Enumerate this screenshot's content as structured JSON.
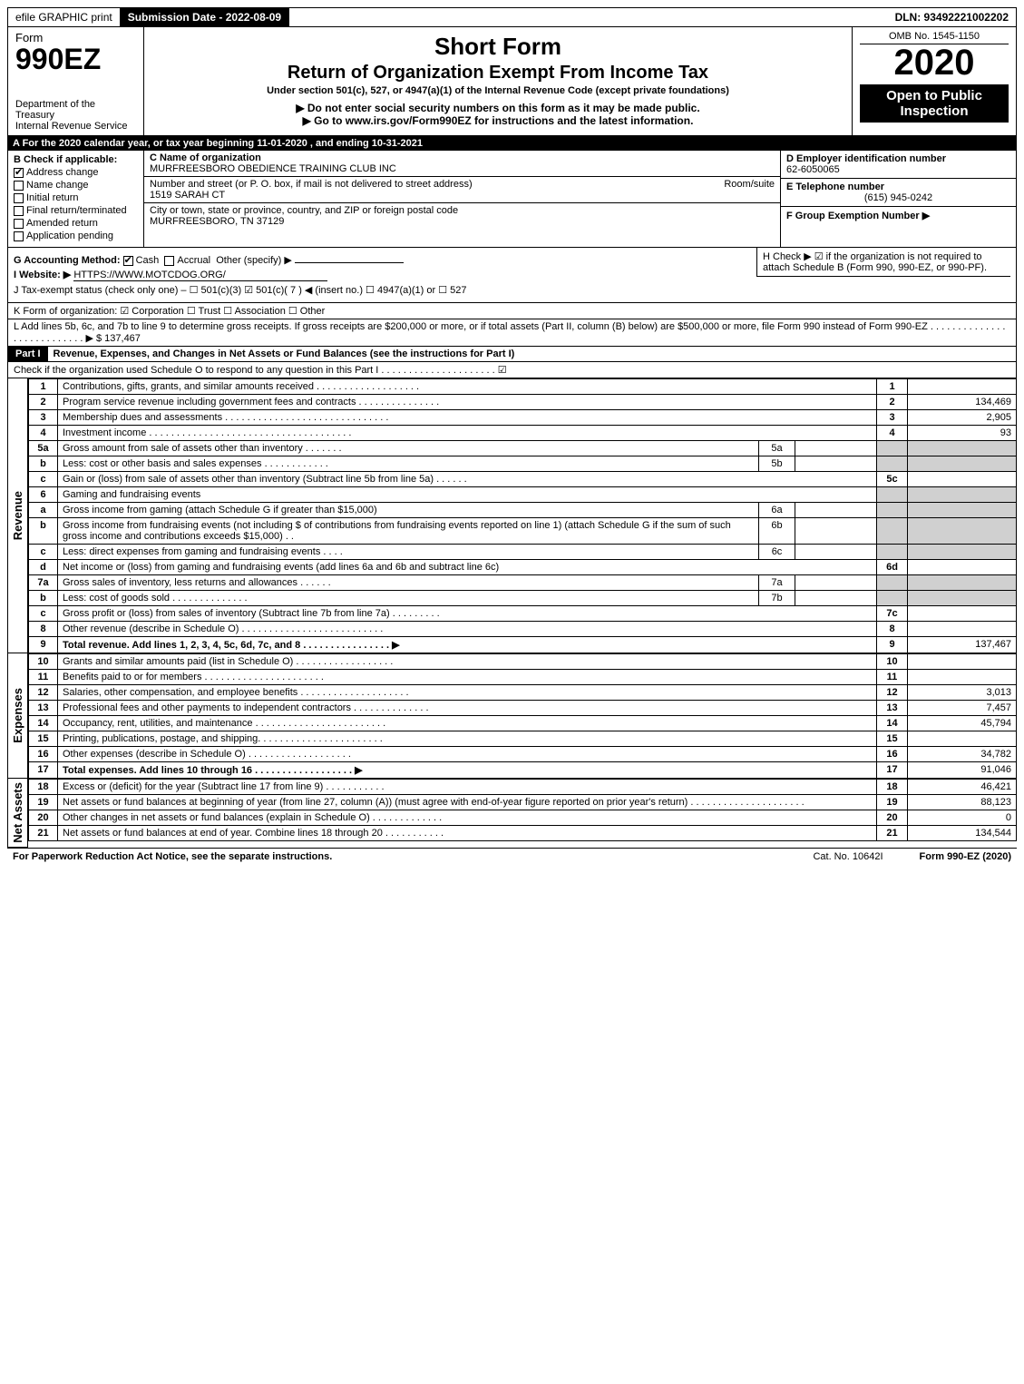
{
  "topbar": {
    "efile": "efile GRAPHIC print",
    "submission": "Submission Date - 2022-08-09",
    "dln": "DLN: 93492221002202"
  },
  "header": {
    "form_label": "Form",
    "form_number": "990EZ",
    "dept": "Department of the Treasury",
    "irs": "Internal Revenue Service",
    "title1": "Short Form",
    "title2": "Return of Organization Exempt From Income Tax",
    "subtitle": "Under section 501(c), 527, or 4947(a)(1) of the Internal Revenue Code (except private foundations)",
    "arrow1": "▶ Do not enter social security numbers on this form as it may be made public.",
    "arrow2": "▶ Go to www.irs.gov/Form990EZ for instructions and the latest information.",
    "omb": "OMB No. 1545-1150",
    "year": "2020",
    "open": "Open to Public Inspection"
  },
  "lineA": "A For the 2020 calendar year, or tax year beginning 11-01-2020 , and ending 10-31-2021",
  "boxB": {
    "label": "B Check if applicable:",
    "items": [
      {
        "checked": true,
        "label": "Address change"
      },
      {
        "checked": false,
        "label": "Name change"
      },
      {
        "checked": false,
        "label": "Initial return"
      },
      {
        "checked": false,
        "label": "Final return/terminated"
      },
      {
        "checked": false,
        "label": "Amended return"
      },
      {
        "checked": false,
        "label": "Application pending"
      }
    ]
  },
  "boxC": {
    "name_label": "C Name of organization",
    "name": "MURFREESBORO OBEDIENCE TRAINING CLUB INC",
    "addr_label": "Number and street (or P. O. box, if mail is not delivered to street address)",
    "room_label": "Room/suite",
    "addr": "1519 SARAH CT",
    "city_label": "City or town, state or province, country, and ZIP or foreign postal code",
    "city": "MURFREESBORO, TN  37129"
  },
  "boxD": {
    "label": "D Employer identification number",
    "value": "62-6050065"
  },
  "boxE": {
    "label": "E Telephone number",
    "value": "(615) 945-0242"
  },
  "boxF": {
    "label": "F Group Exemption Number ▶",
    "value": ""
  },
  "lineG": {
    "label": "G Accounting Method:",
    "cash": "Cash",
    "accrual": "Accrual",
    "other": "Other (specify) ▶"
  },
  "lineH": "H  Check ▶ ☑ if the organization is not required to attach Schedule B (Form 990, 990-EZ, or 990-PF).",
  "lineI": {
    "label": "I Website: ▶",
    "value": "HTTPS://WWW.MOTCDOG.ORG/"
  },
  "lineJ": "J Tax-exempt status (check only one) – ☐ 501(c)(3)  ☑ 501(c)( 7 ) ◀ (insert no.)  ☐ 4947(a)(1) or  ☐ 527",
  "lineK": "K Form of organization:  ☑ Corporation  ☐ Trust  ☐ Association  ☐ Other",
  "lineL": {
    "text": "L Add lines 5b, 6c, and 7b to line 9 to determine gross receipts. If gross receipts are $200,000 or more, or if total assets (Part II, column (B) below) are $500,000 or more, file Form 990 instead of Form 990-EZ  .  .  .  .  .  .  .  .  .  .  .  .  .  .  .  .  .  .  .  .  .  .  .  .  .  .  .  ▶ $",
    "value": "137,467"
  },
  "part1": {
    "label": "Part I",
    "title": "Revenue, Expenses, and Changes in Net Assets or Fund Balances (see the instructions for Part I)",
    "check": "Check if the organization used Schedule O to respond to any question in this Part I  .  .  .  .  .  .  .  .  .  .  .  .  .  .  .  .  .  .  .  .  .  ☑"
  },
  "sections": {
    "revenue": "Revenue",
    "expenses": "Expenses",
    "netassets": "Net Assets"
  },
  "rows": [
    {
      "n": "1",
      "desc": "Contributions, gifts, grants, and similar amounts received  .  .  .  .  .  .  .  .  .  .  .  .  .  .  .  .  .  .  .",
      "ln": "1",
      "val": ""
    },
    {
      "n": "2",
      "desc": "Program service revenue including government fees and contracts  .  .  .  .  .  .  .  .  .  .  .  .  .  .  .",
      "ln": "2",
      "val": "134,469"
    },
    {
      "n": "3",
      "desc": "Membership dues and assessments  .  .  .  .  .  .  .  .  .  .  .  .  .  .  .  .  .  .  .  .  .  .  .  .  .  .  .  .  .  .",
      "ln": "3",
      "val": "2,905"
    },
    {
      "n": "4",
      "desc": "Investment income  .  .  .  .  .  .  .  .  .  .  .  .  .  .  .  .  .  .  .  .  .  .  .  .  .  .  .  .  .  .  .  .  .  .  .  .  .",
      "ln": "4",
      "val": "93"
    },
    {
      "n": "5a",
      "desc": "Gross amount from sale of assets other than inventory  .  .  .  .  .  .  .",
      "sub": "5a",
      "subval": "",
      "grey": true
    },
    {
      "n": "b",
      "desc": "Less: cost or other basis and sales expenses  .  .  .  .  .  .  .  .  .  .  .  .",
      "sub": "5b",
      "subval": "",
      "grey": true
    },
    {
      "n": "c",
      "desc": "Gain or (loss) from sale of assets other than inventory (Subtract line 5b from line 5a)  .  .  .  .  .  .",
      "ln": "5c",
      "val": ""
    },
    {
      "n": "6",
      "desc": "Gaming and fundraising events",
      "grey": true
    },
    {
      "n": "a",
      "desc": "Gross income from gaming (attach Schedule G if greater than $15,000)",
      "sub": "6a",
      "subval": "",
      "grey": true
    },
    {
      "n": "b",
      "desc": "Gross income from fundraising events (not including $                    of contributions from fundraising events reported on line 1) (attach Schedule G if the sum of such gross income and contributions exceeds $15,000)   .   .",
      "sub": "6b",
      "subval": "",
      "grey": true
    },
    {
      "n": "c",
      "desc": "Less: direct expenses from gaming and fundraising events   .   .   .   .",
      "sub": "6c",
      "subval": "",
      "grey": true
    },
    {
      "n": "d",
      "desc": "Net income or (loss) from gaming and fundraising events (add lines 6a and 6b and subtract line 6c)",
      "ln": "6d",
      "val": ""
    },
    {
      "n": "7a",
      "desc": "Gross sales of inventory, less returns and allowances  .  .  .  .  .  .",
      "sub": "7a",
      "subval": "",
      "grey": true
    },
    {
      "n": "b",
      "desc": "Less: cost of goods sold          .   .   .   .   .   .   .   .   .   .   .   .   .   .",
      "sub": "7b",
      "subval": "",
      "grey": true
    },
    {
      "n": "c",
      "desc": "Gross profit or (loss) from sales of inventory (Subtract line 7b from line 7a)  .  .  .  .  .  .  .  .  .",
      "ln": "7c",
      "val": ""
    },
    {
      "n": "8",
      "desc": "Other revenue (describe in Schedule O)  .  .  .  .  .  .  .  .  .  .  .  .  .  .  .  .  .  .  .  .  .  .  .  .  .  .",
      "ln": "8",
      "val": ""
    },
    {
      "n": "9",
      "desc": "Total revenue. Add lines 1, 2, 3, 4, 5c, 6d, 7c, and 8   .   .   .   .   .   .   .   .   .   .   .   .   .   .   .   .   ▶",
      "ln": "9",
      "val": "137,467",
      "bold": true
    }
  ],
  "exp_rows": [
    {
      "n": "10",
      "desc": "Grants and similar amounts paid (list in Schedule O)  .  .  .  .  .  .  .  .  .  .  .  .  .  .  .  .  .  .",
      "ln": "10",
      "val": ""
    },
    {
      "n": "11",
      "desc": "Benefits paid to or for members      .   .   .   .   .   .   .   .   .   .   .   .   .   .   .   .   .   .   .   .   .   .",
      "ln": "11",
      "val": ""
    },
    {
      "n": "12",
      "desc": "Salaries, other compensation, and employee benefits .  .  .  .  .  .  .  .  .  .  .  .  .  .  .  .  .  .  .  .",
      "ln": "12",
      "val": "3,013"
    },
    {
      "n": "13",
      "desc": "Professional fees and other payments to independent contractors  .  .  .  .  .  .  .  .  .  .  .  .  .  .",
      "ln": "13",
      "val": "7,457"
    },
    {
      "n": "14",
      "desc": "Occupancy, rent, utilities, and maintenance .  .  .  .  .  .  .  .  .  .  .  .  .  .  .  .  .  .  .  .  .  .  .  .",
      "ln": "14",
      "val": "45,794"
    },
    {
      "n": "15",
      "desc": "Printing, publications, postage, and shipping.  .  .  .  .  .  .  .  .  .  .  .  .  .  .  .  .  .  .  .  .  .  .",
      "ln": "15",
      "val": ""
    },
    {
      "n": "16",
      "desc": "Other expenses (describe in Schedule O)      .   .   .   .   .   .   .   .   .   .   .   .   .   .   .   .   .   .   .",
      "ln": "16",
      "val": "34,782"
    },
    {
      "n": "17",
      "desc": "Total expenses. Add lines 10 through 16      .   .   .   .   .   .   .   .   .   .   .   .   .   .   .   .   .   .   ▶",
      "ln": "17",
      "val": "91,046",
      "bold": true
    }
  ],
  "na_rows": [
    {
      "n": "18",
      "desc": "Excess or (deficit) for the year (Subtract line 17 from line 9)        .   .   .   .   .   .   .   .   .   .   .",
      "ln": "18",
      "val": "46,421"
    },
    {
      "n": "19",
      "desc": "Net assets or fund balances at beginning of year (from line 27, column (A)) (must agree with end-of-year figure reported on prior year's return) .  .  .  .  .  .  .  .  .  .  .  .  .  .  .  .  .  .  .  .  .",
      "ln": "19",
      "val": "88,123"
    },
    {
      "n": "20",
      "desc": "Other changes in net assets or fund balances (explain in Schedule O) .  .  .  .  .  .  .  .  .  .  .  .  .",
      "ln": "20",
      "val": "0"
    },
    {
      "n": "21",
      "desc": "Net assets or fund balances at end of year. Combine lines 18 through 20 .  .  .  .  .  .  .  .  .  .  .",
      "ln": "21",
      "val": "134,544"
    }
  ],
  "footer": {
    "left": "For Paperwork Reduction Act Notice, see the separate instructions.",
    "mid": "Cat. No. 10642I",
    "right": "Form 990-EZ (2020)"
  },
  "colors": {
    "black": "#000000",
    "grey": "#d0d0d0",
    "white": "#ffffff"
  }
}
